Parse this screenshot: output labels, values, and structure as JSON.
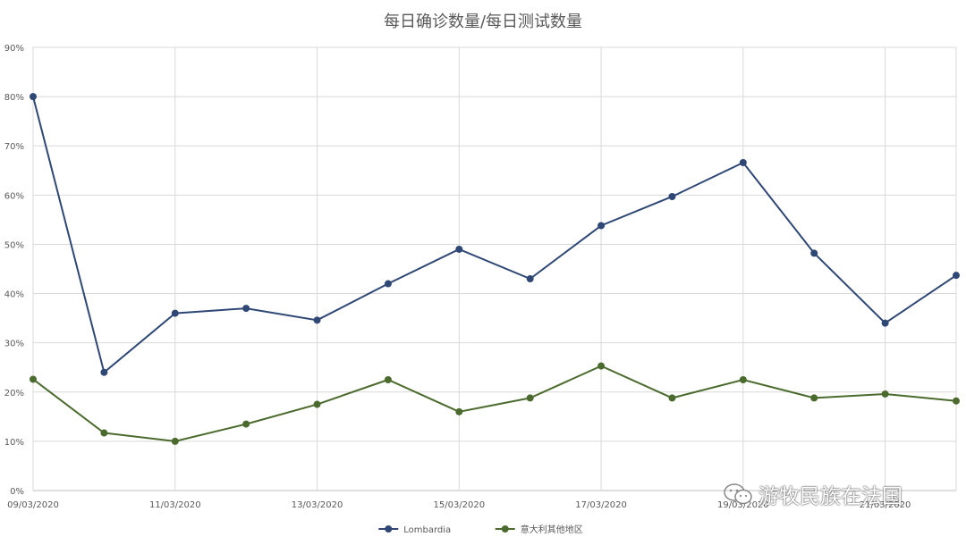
{
  "chart_data": {
    "type": "line",
    "title": "每日确诊数量/每日测试数量",
    "x": [
      "09/03/2020",
      "10/03/2020",
      "11/03/2020",
      "12/03/2020",
      "13/03/2020",
      "14/03/2020",
      "15/03/2020",
      "16/03/2020",
      "17/03/2020",
      "18/03/2020",
      "19/03/2020",
      "20/03/2020",
      "21/03/2020",
      "22/03/2020"
    ],
    "x_tick_labels": [
      "09/03/2020",
      "",
      "11/03/2020",
      "",
      "13/03/2020",
      "",
      "15/03/2020",
      "",
      "17/03/2020",
      "",
      "19/03/2020",
      "",
      "21/03/2020",
      ""
    ],
    "y_ticks": [
      "0%",
      "10%",
      "20%",
      "30%",
      "40%",
      "50%",
      "60%",
      "70%",
      "80%",
      "90%"
    ],
    "ylim": [
      0,
      90
    ],
    "grid": true,
    "legend_position": "bottom",
    "series": [
      {
        "name": "Lombardia",
        "color": "#2f4775",
        "values": [
          80,
          24,
          36,
          37,
          34.6,
          42,
          49,
          43,
          53.8,
          59.7,
          66.6,
          48.2,
          34,
          43.7
        ]
      },
      {
        "name": "意大利其他地区",
        "color": "#4b6b2e",
        "values": [
          22.6,
          11.7,
          10,
          13.5,
          17.5,
          22.5,
          16,
          18.8,
          25.3,
          18.8,
          22.5,
          18.8,
          19.6,
          18.2
        ]
      }
    ]
  },
  "watermark": {
    "text": "游牧民族在法国",
    "icon": "wechat-icon"
  }
}
